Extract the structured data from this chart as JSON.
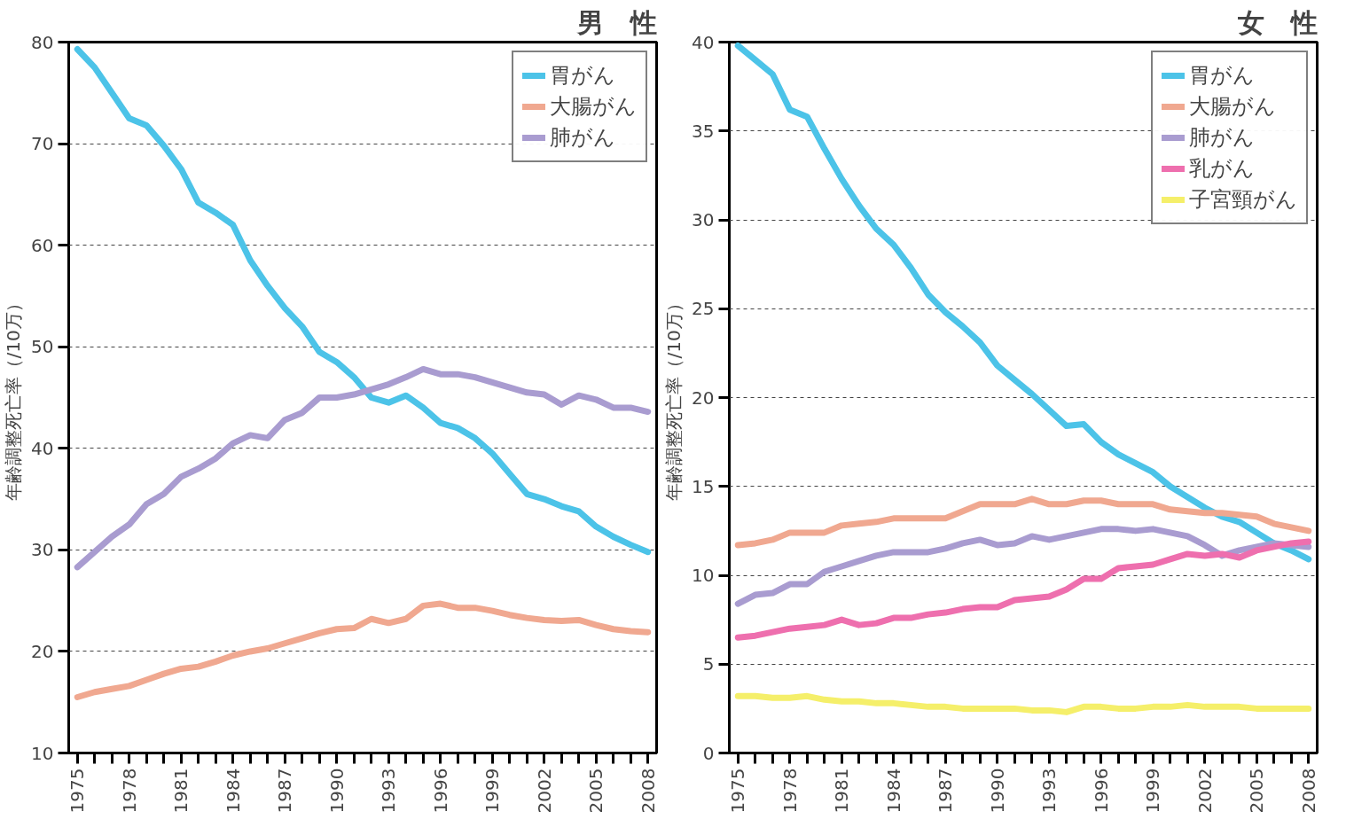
{
  "chart_data": [
    {
      "type": "line",
      "title": "男　性",
      "ylabel": "年齢調整死亡率（/10万）",
      "x": [
        1975,
        1976,
        1977,
        1978,
        1979,
        1980,
        1981,
        1982,
        1983,
        1984,
        1985,
        1986,
        1987,
        1988,
        1989,
        1990,
        1991,
        1992,
        1993,
        1994,
        1995,
        1996,
        1997,
        1998,
        1999,
        2000,
        2001,
        2002,
        2003,
        2004,
        2005,
        2006,
        2007,
        2008
      ],
      "xlim": [
        1974.5,
        2008.5
      ],
      "ylim": [
        10,
        80
      ],
      "yticks": [
        10,
        20,
        30,
        40,
        50,
        60,
        70,
        80
      ],
      "xticks": [
        1975,
        {
          "value": 1976,
          "label": null
        },
        {
          "value": 1977,
          "label": null
        },
        1978,
        {
          "value": 1979,
          "label": null
        },
        {
          "value": 1980,
          "label": null
        },
        1981,
        {
          "value": 1982,
          "label": null
        },
        {
          "value": 1983,
          "label": null
        },
        1984,
        {
          "value": 1985,
          "label": null
        },
        {
          "value": 1986,
          "label": null
        },
        1987,
        {
          "value": 1988,
          "label": null
        },
        {
          "value": 1989,
          "label": null
        },
        1990,
        {
          "value": 1991,
          "label": null
        },
        {
          "value": 1992,
          "label": null
        },
        1993,
        {
          "value": 1994,
          "label": null
        },
        {
          "value": 1995,
          "label": null
        },
        1996,
        {
          "value": 1997,
          "label": null
        },
        {
          "value": 1998,
          "label": null
        },
        1999,
        {
          "value": 2000,
          "label": null
        },
        {
          "value": 2001,
          "label": null
        },
        2002,
        {
          "value": 2003,
          "label": null
        },
        {
          "value": 2004,
          "label": null
        },
        2005,
        {
          "value": 2006,
          "label": null
        },
        {
          "value": 2007,
          "label": null
        },
        2008
      ],
      "grid": "y",
      "legend": "top right",
      "marker": "none",
      "line_style": "solid",
      "series": [
        {
          "name": "胃がん",
          "color": "#4cc3e8",
          "values": [
            79.3,
            77.5,
            75,
            72.5,
            71.8,
            69.8,
            67.5,
            64.2,
            63.2,
            62,
            58.5,
            56,
            53.8,
            52,
            49.5,
            48.5,
            47,
            45,
            44.5,
            45.2,
            44,
            42.5,
            42,
            41,
            39.5,
            37.5,
            35.5,
            35,
            34.3,
            33.8,
            32.3,
            31.3,
            30.5,
            29.8
          ]
        },
        {
          "name": "大腸がん",
          "color": "#f0a890",
          "values": [
            15.5,
            16,
            16.3,
            16.6,
            17.2,
            17.8,
            18.3,
            18.5,
            19,
            19.6,
            20,
            20.3,
            20.8,
            21.3,
            21.8,
            22.2,
            22.3,
            23.2,
            22.8,
            23.2,
            24.5,
            24.7,
            24.3,
            24.3,
            24,
            23.6,
            23.3,
            23.1,
            23,
            23.1,
            22.6,
            22.2,
            22,
            21.9
          ]
        },
        {
          "name": "肺がん",
          "color": "#a99cd0",
          "values": [
            28.3,
            29.8,
            31.3,
            32.5,
            34.5,
            35.5,
            37.2,
            38,
            39,
            40.5,
            41.3,
            41,
            42.8,
            43.5,
            45,
            45,
            45.3,
            45.8,
            46.3,
            47,
            47.8,
            47.3,
            47.3,
            47,
            46.5,
            46,
            45.5,
            45.3,
            44.3,
            45.2,
            44.8,
            44,
            44,
            43.6
          ]
        }
      ]
    },
    {
      "type": "line",
      "title": "女　性",
      "ylabel": "年齢調整死亡率（/10万）",
      "x": [
        1975,
        1976,
        1977,
        1978,
        1979,
        1980,
        1981,
        1982,
        1983,
        1984,
        1985,
        1986,
        1987,
        1988,
        1989,
        1990,
        1991,
        1992,
        1993,
        1994,
        1995,
        1996,
        1997,
        1998,
        1999,
        2000,
        2001,
        2002,
        2003,
        2004,
        2005,
        2006,
        2007,
        2008
      ],
      "xlim": [
        1974.5,
        2008.5
      ],
      "ylim": [
        0,
        40
      ],
      "yticks": [
        0,
        5,
        10,
        15,
        20,
        25,
        30,
        35,
        40
      ],
      "xticks": [
        1975,
        {
          "value": 1976,
          "label": null
        },
        {
          "value": 1977,
          "label": null
        },
        1978,
        {
          "value": 1979,
          "label": null
        },
        {
          "value": 1980,
          "label": null
        },
        1981,
        {
          "value": 1982,
          "label": null
        },
        {
          "value": 1983,
          "label": null
        },
        1984,
        {
          "value": 1985,
          "label": null
        },
        {
          "value": 1986,
          "label": null
        },
        1987,
        {
          "value": 1988,
          "label": null
        },
        {
          "value": 1989,
          "label": null
        },
        1990,
        {
          "value": 1991,
          "label": null
        },
        {
          "value": 1992,
          "label": null
        },
        1993,
        {
          "value": 1994,
          "label": null
        },
        {
          "value": 1995,
          "label": null
        },
        1996,
        {
          "value": 1997,
          "label": null
        },
        {
          "value": 1998,
          "label": null
        },
        1999,
        {
          "value": 2000,
          "label": null
        },
        {
          "value": 2001,
          "label": null
        },
        2002,
        {
          "value": 2003,
          "label": null
        },
        {
          "value": 2004,
          "label": null
        },
        2005,
        {
          "value": 2006,
          "label": null
        },
        {
          "value": 2007,
          "label": null
        },
        2008
      ],
      "grid": "y",
      "legend": "top right",
      "marker": "none",
      "line_style": "solid",
      "series": [
        {
          "name": "胃がん",
          "color": "#4cc3e8",
          "values": [
            39.8,
            39,
            38.2,
            36.2,
            35.8,
            34,
            32.3,
            30.8,
            29.5,
            28.6,
            27.3,
            25.8,
            24.8,
            24,
            23.1,
            21.8,
            21,
            20.2,
            19.3,
            18.4,
            18.5,
            17.5,
            16.8,
            16.3,
            15.8,
            15,
            14.4,
            13.8,
            13.3,
            13,
            12.4,
            11.8,
            11.4,
            10.9
          ]
        },
        {
          "name": "大腸がん",
          "color": "#f0a890",
          "values": [
            11.7,
            11.8,
            12,
            12.4,
            12.4,
            12.4,
            12.8,
            12.9,
            13,
            13.2,
            13.2,
            13.2,
            13.2,
            13.6,
            14,
            14,
            14,
            14.3,
            14,
            14,
            14.2,
            14.2,
            14,
            14,
            14,
            13.7,
            13.6,
            13.5,
            13.5,
            13.4,
            13.3,
            12.9,
            12.7,
            12.5
          ]
        },
        {
          "name": "肺がん",
          "color": "#a99cd0",
          "values": [
            8.4,
            8.9,
            9,
            9.5,
            9.5,
            10.2,
            10.5,
            10.8,
            11.1,
            11.3,
            11.3,
            11.3,
            11.5,
            11.8,
            12,
            11.7,
            11.8,
            12.2,
            12,
            12.2,
            12.4,
            12.6,
            12.6,
            12.5,
            12.6,
            12.4,
            12.2,
            11.7,
            11.1,
            11.4,
            11.6,
            11.8,
            11.7,
            11.6
          ]
        },
        {
          "name": "乳がん",
          "color": "#ee6fae",
          "values": [
            6.5,
            6.6,
            6.8,
            7,
            7.1,
            7.2,
            7.5,
            7.2,
            7.3,
            7.6,
            7.6,
            7.8,
            7.9,
            8.1,
            8.2,
            8.2,
            8.6,
            8.7,
            8.8,
            9.2,
            9.8,
            9.8,
            10.4,
            10.5,
            10.6,
            10.9,
            11.2,
            11.1,
            11.2,
            11,
            11.4,
            11.6,
            11.8,
            11.9
          ]
        },
        {
          "name": "子宮頸がん",
          "color": "#f5ef6a",
          "values": [
            3.2,
            3.2,
            3.1,
            3.1,
            3.2,
            3.0,
            2.9,
            2.9,
            2.8,
            2.8,
            2.7,
            2.6,
            2.6,
            2.5,
            2.5,
            2.5,
            2.5,
            2.4,
            2.4,
            2.3,
            2.6,
            2.6,
            2.5,
            2.5,
            2.6,
            2.6,
            2.7,
            2.6,
            2.6,
            2.6,
            2.5,
            2.5,
            2.5,
            2.5
          ]
        }
      ]
    }
  ]
}
